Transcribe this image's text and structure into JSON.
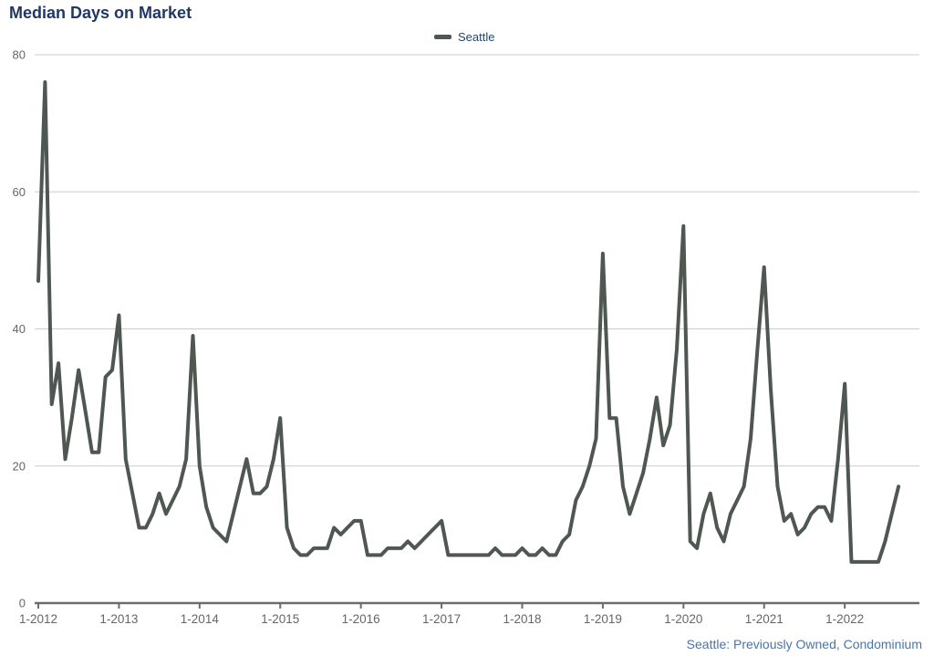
{
  "page_title": "Median Days on Market",
  "chart_data": {
    "type": "line",
    "title": "Median Days on Market",
    "legend_label": "Seattle",
    "legend_position": "top-center",
    "footnote": "Seattle: Previously Owned, Condominium",
    "grid": true,
    "x_frequency": "monthly",
    "x_start_label": "1-2012",
    "x_end_label": "9-2022",
    "x_tick_labels": [
      "1-2012",
      "1-2013",
      "1-2014",
      "1-2015",
      "1-2016",
      "1-2017",
      "1-2018",
      "1-2019",
      "1-2020",
      "1-2021",
      "1-2022"
    ],
    "ylim": [
      0,
      80
    ],
    "y_ticks": [
      0,
      20,
      40,
      60,
      80
    ],
    "series": [
      {
        "name": "Seattle",
        "color": "#4f5752",
        "values": [
          47,
          76,
          29,
          35,
          21,
          27,
          34,
          28,
          22,
          22,
          33,
          34,
          42,
          21,
          16,
          11,
          11,
          13,
          16,
          13,
          15,
          17,
          21,
          39,
          20,
          14,
          11,
          10,
          9,
          13,
          17,
          21,
          16,
          16,
          17,
          21,
          27,
          11,
          8,
          7,
          7,
          8,
          8,
          8,
          11,
          10,
          11,
          12,
          12,
          7,
          7,
          7,
          8,
          8,
          8,
          9,
          8,
          9,
          10,
          11,
          12,
          7,
          7,
          7,
          7,
          7,
          7,
          7,
          8,
          7,
          7,
          7,
          8,
          7,
          7,
          8,
          7,
          7,
          9,
          10,
          15,
          17,
          20,
          24,
          51,
          27,
          27,
          17,
          13,
          16,
          19,
          24,
          30,
          23,
          26,
          37,
          55,
          9,
          8,
          13,
          16,
          11,
          9,
          13,
          15,
          17,
          24,
          37,
          49,
          31,
          17,
          12,
          13,
          10,
          11,
          13,
          14,
          14,
          12,
          21,
          32,
          6,
          6,
          6,
          6,
          6,
          9,
          13,
          17
        ]
      }
    ],
    "colors": {
      "title": "#1f3864",
      "legend_text": "#24476b",
      "series_line": "#4f5752",
      "gridline": "#cccccc",
      "axis_line": "#6a6c6e",
      "axis_tick_text": "#666666",
      "footnote_text": "#4c74a6"
    }
  }
}
